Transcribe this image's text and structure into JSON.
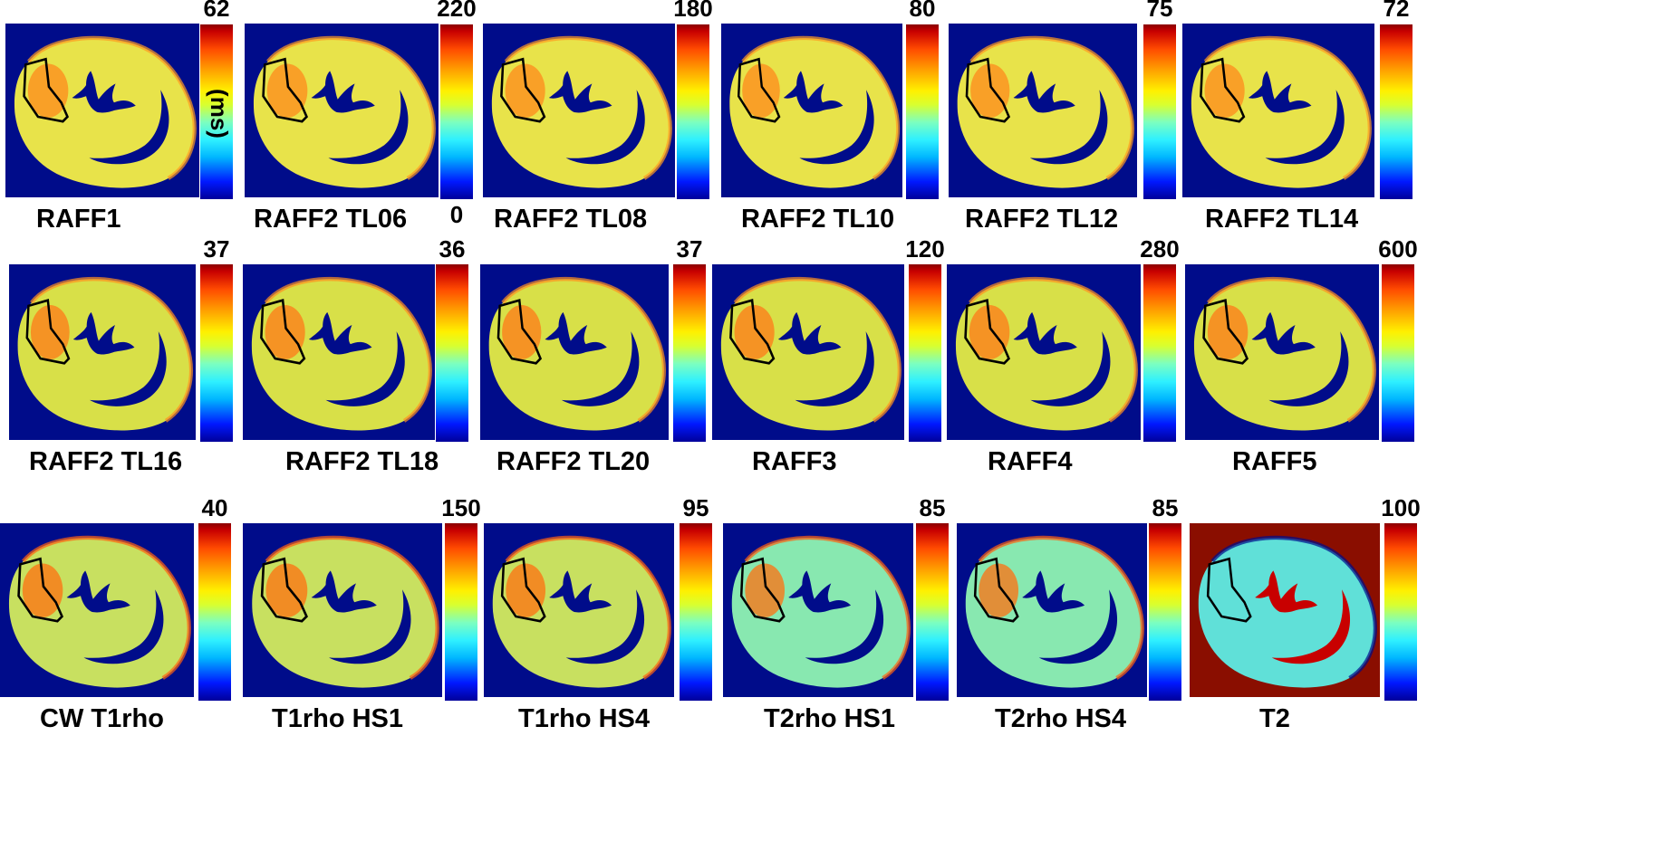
{
  "colormap": {
    "low": "#00009a",
    "mid": "#fff000",
    "high": "#8a0000",
    "background": "#000c8a",
    "roi_outline": "#000000"
  },
  "unit_label": "(ms)",
  "colorbar_min": "0",
  "panels": [
    {
      "label": "RAFF1",
      "max": "62"
    },
    {
      "label": "RAFF2 TL06",
      "max": "220"
    },
    {
      "label": "RAFF2 TL08",
      "max": "180"
    },
    {
      "label": "RAFF2 TL10",
      "max": "80"
    },
    {
      "label": "RAFF2 TL12",
      "max": "75"
    },
    {
      "label": "RAFF2 TL14",
      "max": "72"
    },
    {
      "label": "RAFF2 TL16",
      "max": "37"
    },
    {
      "label": "RAFF2 TL18",
      "max": "36"
    },
    {
      "label": "RAFF2 TL20",
      "max": "37"
    },
    {
      "label": "RAFF3",
      "max": "120"
    },
    {
      "label": "RAFF4",
      "max": "280"
    },
    {
      "label": "RAFF5",
      "max": "600"
    },
    {
      "label": "CW T1rho",
      "max": "40"
    },
    {
      "label": "T1rho HS1",
      "max": "150"
    },
    {
      "label": "T1rho HS4",
      "max": "95"
    },
    {
      "label": "T2rho HS1",
      "max": "85"
    },
    {
      "label": "T2rho HS4",
      "max": "85"
    },
    {
      "label": "T2",
      "max": "100"
    }
  ]
}
